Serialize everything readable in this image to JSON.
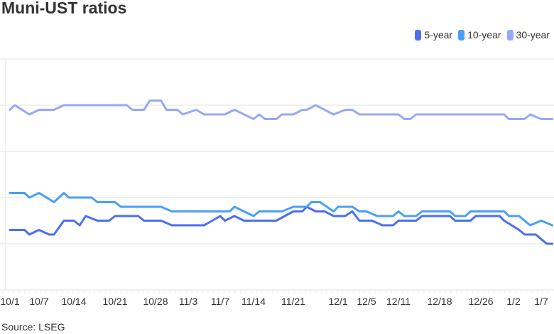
{
  "title": "Muni-UST ratios",
  "source": "Source: LSEG",
  "chart_data": {
    "type": "line",
    "title": "Muni-UST ratios",
    "xlabel": "",
    "ylabel": "",
    "ylim": [
      40,
      90
    ],
    "y_gridlines": [
      40,
      50,
      60,
      70,
      80,
      90
    ],
    "y_tick_labels_visible": false,
    "grid": true,
    "legend": "top-right",
    "x_ticks": [
      "10/1",
      "10/7",
      "10/14",
      "10/21",
      "10/28",
      "11/3",
      "11/7",
      "11/14",
      "11/21",
      "12/1",
      "12/5",
      "12/11",
      "12/18",
      "12/26",
      "1/2",
      "1/7"
    ],
    "series": [
      {
        "name": "5-year",
        "color": "#4c6ef0",
        "x": [
          "10/1",
          "10/4",
          "10/5",
          "10/7",
          "10/9",
          "10/10",
          "10/12",
          "10/14",
          "10/15",
          "10/16",
          "10/18",
          "10/20",
          "10/21",
          "10/25",
          "10/26",
          "10/29",
          "10/31",
          "11/5",
          "11/7",
          "11/8",
          "11/10",
          "11/12",
          "11/18",
          "11/21",
          "11/23",
          "11/24",
          "11/26",
          "11/28",
          "11/30",
          "12/2",
          "12/3",
          "12/4",
          "12/6",
          "12/8",
          "12/10",
          "12/11",
          "12/14",
          "12/15",
          "12/20",
          "12/21",
          "12/24",
          "12/25",
          "12/30",
          "12/31",
          "1/3",
          "1/4",
          "1/6",
          "1/8",
          "1/9"
        ],
        "values": [
          53,
          53,
          52,
          53,
          52,
          52,
          55,
          55,
          54,
          56,
          55,
          55,
          56,
          56,
          55,
          55,
          54,
          54,
          56,
          55,
          56,
          55,
          55,
          57,
          57,
          58,
          57,
          57,
          56,
          56,
          57,
          55,
          55,
          54,
          54,
          55,
          55,
          56,
          56,
          55,
          55,
          56,
          56,
          55,
          53,
          52,
          52,
          50,
          50
        ]
      },
      {
        "name": "10-year",
        "color": "#4a9ff5",
        "x": [
          "10/1",
          "10/4",
          "10/5",
          "10/7",
          "10/10",
          "10/12",
          "10/13",
          "10/17",
          "10/18",
          "10/21",
          "10/22",
          "10/29",
          "10/31",
          "11/9",
          "11/10",
          "11/14",
          "11/15",
          "11/19",
          "11/21",
          "11/24",
          "11/25",
          "11/27",
          "11/30",
          "12/1",
          "12/3",
          "12/4",
          "12/5",
          "12/7",
          "12/10",
          "12/11",
          "12/12",
          "12/14",
          "12/15",
          "12/20",
          "12/21",
          "12/23",
          "12/24",
          "12/31",
          "1/1",
          "1/3",
          "1/5",
          "1/7",
          "1/9"
        ],
        "values": [
          61,
          61,
          60,
          61,
          59,
          61,
          60,
          60,
          59,
          59,
          58,
          58,
          57,
          57,
          58,
          56,
          57,
          57,
          58,
          58,
          59,
          59,
          57,
          58,
          58,
          57,
          57,
          56,
          56,
          57,
          56,
          56,
          57,
          57,
          56,
          56,
          57,
          57,
          56,
          56,
          54,
          55,
          54
        ]
      },
      {
        "name": "30-year",
        "color": "#97a8f6",
        "x": [
          "10/1",
          "10/2",
          "10/5",
          "10/7",
          "10/10",
          "10/12",
          "10/23",
          "10/24",
          "10/26",
          "10/27",
          "10/29",
          "10/30",
          "11/1",
          "11/2",
          "11/4",
          "11/5",
          "11/8",
          "11/10",
          "11/14",
          "11/15",
          "11/16",
          "11/18",
          "11/19",
          "11/21",
          "11/23",
          "11/24",
          "11/26",
          "11/30",
          "12/2",
          "12/3",
          "12/4",
          "12/11",
          "12/12",
          "12/13",
          "12/14",
          "12/31",
          "1/1",
          "1/4",
          "1/5",
          "1/7",
          "1/9"
        ],
        "values": [
          79,
          80,
          78,
          79,
          79,
          80,
          80,
          79,
          79,
          81,
          81,
          79,
          79,
          78,
          79,
          78,
          78,
          79,
          77,
          78,
          77,
          77,
          78,
          78,
          79,
          79,
          80,
          78,
          79,
          79,
          78,
          78,
          77,
          77,
          78,
          78,
          77,
          77,
          78,
          77,
          77
        ]
      }
    ]
  }
}
